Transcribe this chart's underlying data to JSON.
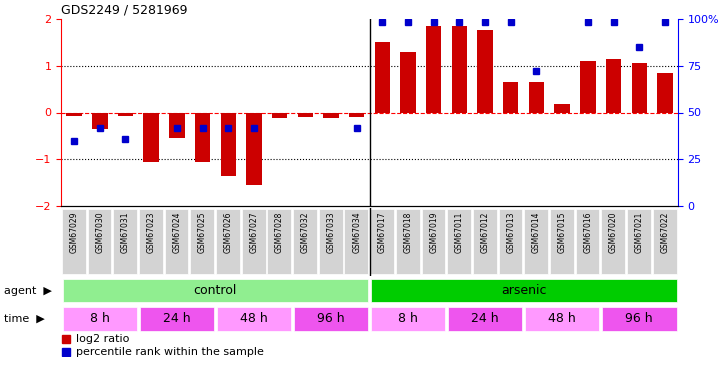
{
  "title": "GDS2249 / 5281969",
  "samples": [
    "GSM67029",
    "GSM67030",
    "GSM67031",
    "GSM67023",
    "GSM67024",
    "GSM67025",
    "GSM67026",
    "GSM67027",
    "GSM67028",
    "GSM67032",
    "GSM67033",
    "GSM67034",
    "GSM67017",
    "GSM67018",
    "GSM67019",
    "GSM67011",
    "GSM67012",
    "GSM67013",
    "GSM67014",
    "GSM67015",
    "GSM67016",
    "GSM67020",
    "GSM67021",
    "GSM67022"
  ],
  "log2_ratio": [
    -0.08,
    -0.35,
    -0.08,
    -1.05,
    -0.55,
    -1.05,
    -1.35,
    -1.55,
    -0.12,
    -0.1,
    -0.12,
    -0.1,
    1.5,
    1.3,
    1.85,
    1.85,
    1.75,
    0.65,
    0.65,
    0.18,
    1.1,
    1.15,
    1.05,
    0.85
  ],
  "percentile_rank": [
    35,
    42,
    36,
    null,
    42,
    42,
    42,
    42,
    null,
    null,
    null,
    42,
    98,
    98,
    98,
    98,
    98,
    98,
    72,
    null,
    98,
    98,
    85,
    98
  ],
  "agent_groups": [
    {
      "label": "control",
      "start": 0,
      "end": 11,
      "color": "#90EE90"
    },
    {
      "label": "arsenic",
      "start": 12,
      "end": 23,
      "color": "#00CC00"
    }
  ],
  "time_groups": [
    {
      "label": "8 h",
      "start": 0,
      "end": 2,
      "color": "#FF99FF"
    },
    {
      "label": "24 h",
      "start": 3,
      "end": 5,
      "color": "#EE55EE"
    },
    {
      "label": "48 h",
      "start": 6,
      "end": 8,
      "color": "#FF99FF"
    },
    {
      "label": "96 h",
      "start": 9,
      "end": 11,
      "color": "#EE55EE"
    },
    {
      "label": "8 h",
      "start": 12,
      "end": 14,
      "color": "#FF99FF"
    },
    {
      "label": "24 h",
      "start": 15,
      "end": 17,
      "color": "#EE55EE"
    },
    {
      "label": "48 h",
      "start": 18,
      "end": 20,
      "color": "#FF99FF"
    },
    {
      "label": "96 h",
      "start": 21,
      "end": 23,
      "color": "#EE55EE"
    }
  ],
  "bar_color": "#CC0000",
  "dot_color": "#0000CC",
  "left_ylim": [
    -2,
    2
  ],
  "right_ylim": [
    0,
    100
  ],
  "left_yticks": [
    -2,
    -1,
    0,
    1,
    2
  ],
  "right_yticks": [
    0,
    25,
    50,
    75,
    100
  ],
  "background_color": "#ffffff"
}
